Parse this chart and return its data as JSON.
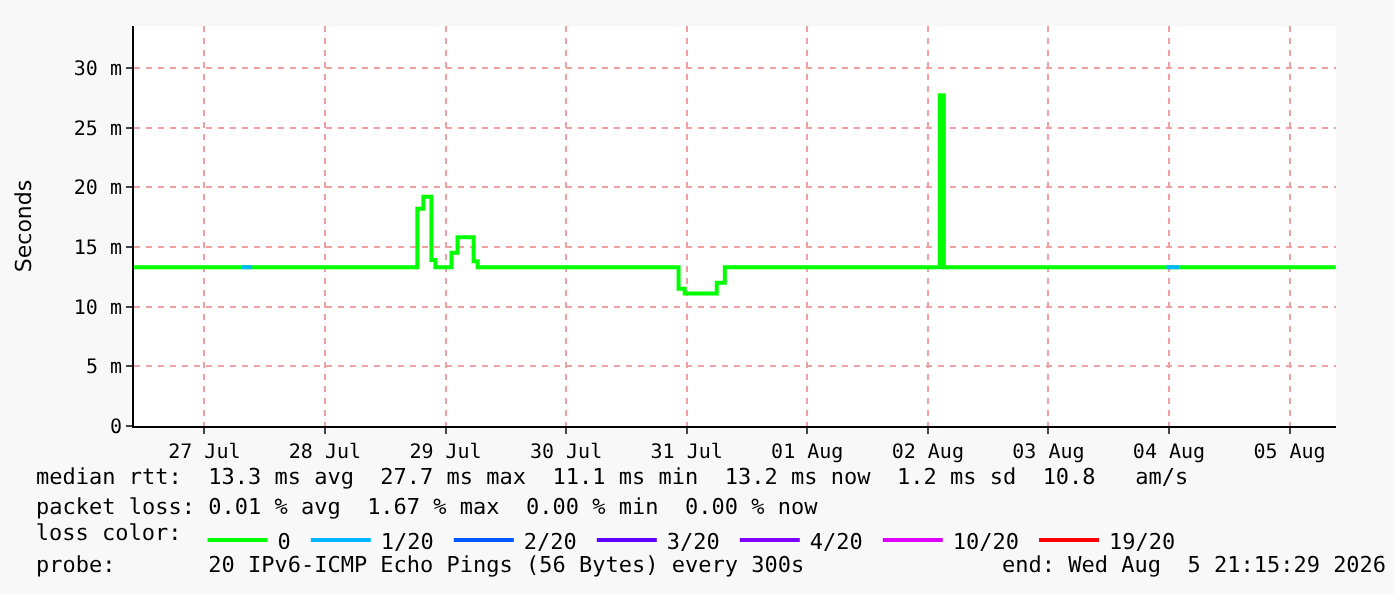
{
  "chart_data": {
    "type": "step",
    "ylabel": "Seconds",
    "legend_title": "loss color:",
    "xlim": [
      "2026-07-26T22:00",
      "2026-08-05T21:15"
    ],
    "xticks": [
      {
        "value": "2026-07-27T12:00",
        "label": "27 Jul"
      },
      {
        "value": "2026-07-28T12:00",
        "label": "28 Jul"
      },
      {
        "value": "2026-07-29T12:00",
        "label": "29 Jul"
      },
      {
        "value": "2026-07-30T12:00",
        "label": "30 Jul"
      },
      {
        "value": "2026-07-31T12:00",
        "label": "31 Jul"
      },
      {
        "value": "2026-08-01T12:00",
        "label": "01 Aug"
      },
      {
        "value": "2026-08-02T12:00",
        "label": "02 Aug"
      },
      {
        "value": "2026-08-03T12:00",
        "label": "03 Aug"
      },
      {
        "value": "2026-08-04T12:00",
        "label": "04 Aug"
      },
      {
        "value": "2026-08-05T12:00",
        "label": "05 Aug"
      }
    ],
    "ylim": [
      0,
      33.5
    ],
    "yticks": [
      0,
      {
        "value": 5,
        "label": "5 m"
      },
      {
        "value": 10,
        "label": "10 m"
      },
      {
        "value": 15,
        "label": "15 m"
      },
      {
        "value": 20,
        "label": "20 m"
      },
      {
        "value": 25,
        "label": "25 m"
      },
      {
        "value": 30,
        "label": "30 m"
      }
    ],
    "grid": true,
    "legend": "bottom",
    "marker": "none",
    "series": [
      {
        "name": "0",
        "color": "#00ff00",
        "x": [
          "2026-07-26T22:00",
          "2026-07-29T06:24",
          "2026-07-29T07:36",
          "2026-07-29T09:12",
          "2026-07-29T10:00",
          "2026-07-29T13:12",
          "2026-07-29T14:24",
          "2026-07-29T17:36",
          "2026-07-29T18:24",
          "2026-07-31T10:24",
          "2026-07-31T11:36",
          "2026-07-31T18:00",
          "2026-07-31T19:36",
          "2026-08-02T14:24",
          "2026-08-02T15:12",
          "2026-08-05T21:12"
        ],
        "values": [
          13.3,
          18.2,
          19.2,
          13.9,
          13.3,
          14.5,
          15.8,
          13.8,
          13.3,
          11.5,
          11.1,
          12.0,
          13.3,
          27.7,
          13.3,
          13.3
        ]
      },
      {
        "name": "1/20",
        "color": "#00b8ff",
        "x": [
          "2026-07-27T19:30",
          "2026-07-27T21:30",
          "2026-07-27T21:31",
          "2026-08-04T11:30",
          "2026-08-04T14:00"
        ],
        "values": [
          13.3,
          13.3,
          null,
          13.3,
          13.3
        ]
      },
      {
        "name": "2/20",
        "color": "#0059ff",
        "values": [
          null
        ]
      },
      {
        "name": "3/20",
        "color": "#5e00ff",
        "values": [
          null
        ]
      },
      {
        "name": "4/20",
        "color": "#7e00ff",
        "values": [
          null
        ]
      },
      {
        "name": "10/20",
        "color": "#dd00ff",
        "values": [
          null
        ]
      },
      {
        "name": "19/20",
        "color": "#ff0000",
        "values": [
          null
        ]
      }
    ],
    "annotations": [
      "median rtt:  13.3 ms avg  27.7 ms max  11.1 ms min  13.2 ms now  1.2 ms sd  10.8   am/s",
      "packet loss: 0.01 % avg  1.67 % max  0.00 % min  0.00 % now",
      "probe:       20 IPv6-ICMP Echo Pings (56 Bytes) every 300s",
      "end: Wed Aug  5 21:15:29 2026"
    ]
  }
}
